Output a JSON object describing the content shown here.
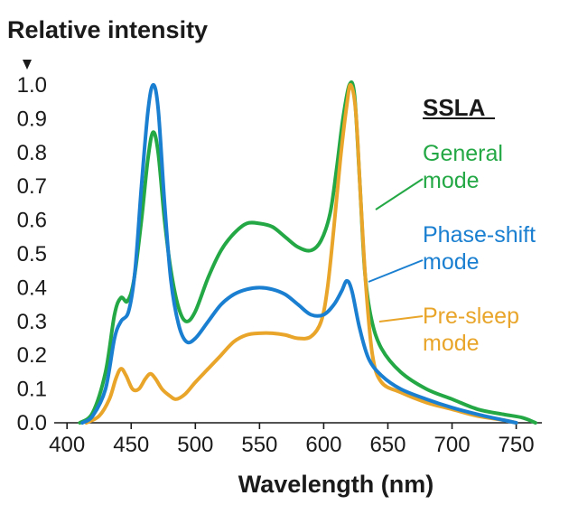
{
  "chart_data": {
    "type": "line",
    "ylabel": "Relative intensity",
    "xlabel": "Wavelength (nm)",
    "xlim": [
      390,
      770
    ],
    "ylim": [
      0,
      1.0
    ],
    "x_ticks": [
      400,
      450,
      500,
      550,
      600,
      650,
      700,
      750
    ],
    "y_ticks": [
      0.0,
      0.1,
      0.2,
      0.3,
      0.4,
      0.5,
      0.6,
      0.7,
      0.8,
      0.9,
      1.0
    ],
    "x_tick_labels": [
      "400",
      "450",
      "500",
      "550",
      "600",
      "650",
      "700",
      "750"
    ],
    "y_tick_labels": [
      "0.0",
      "0.1",
      "0.2",
      "0.3",
      "0.4",
      "0.5",
      "0.6",
      "0.7",
      "0.8",
      "0.9",
      "1.0"
    ],
    "legend_title": "SSLA",
    "grid": false,
    "series": [
      {
        "name": "General mode",
        "name_lines": [
          "General",
          "mode"
        ],
        "color": "#23a845",
        "points": [
          [
            410,
            0
          ],
          [
            420,
            0.03
          ],
          [
            430,
            0.15
          ],
          [
            437,
            0.32
          ],
          [
            442,
            0.37
          ],
          [
            447,
            0.36
          ],
          [
            452,
            0.42
          ],
          [
            458,
            0.6
          ],
          [
            463,
            0.78
          ],
          [
            467,
            0.86
          ],
          [
            471,
            0.8
          ],
          [
            476,
            0.6
          ],
          [
            481,
            0.45
          ],
          [
            487,
            0.34
          ],
          [
            493,
            0.3
          ],
          [
            500,
            0.33
          ],
          [
            510,
            0.43
          ],
          [
            520,
            0.51
          ],
          [
            530,
            0.56
          ],
          [
            540,
            0.59
          ],
          [
            550,
            0.59
          ],
          [
            560,
            0.58
          ],
          [
            570,
            0.55
          ],
          [
            580,
            0.52
          ],
          [
            590,
            0.51
          ],
          [
            598,
            0.54
          ],
          [
            605,
            0.62
          ],
          [
            610,
            0.75
          ],
          [
            615,
            0.9
          ],
          [
            620,
            1.0
          ],
          [
            624,
            0.97
          ],
          [
            628,
            0.72
          ],
          [
            632,
            0.45
          ],
          [
            637,
            0.31
          ],
          [
            645,
            0.22
          ],
          [
            660,
            0.15
          ],
          [
            680,
            0.1
          ],
          [
            700,
            0.07
          ],
          [
            720,
            0.04
          ],
          [
            740,
            0.025
          ],
          [
            755,
            0.015
          ],
          [
            765,
            0
          ]
        ]
      },
      {
        "name": "Phase-shift mode",
        "name_lines": [
          "Phase-shift",
          "mode"
        ],
        "color": "#1a7fd0",
        "points": [
          [
            412,
            0
          ],
          [
            420,
            0.02
          ],
          [
            430,
            0.1
          ],
          [
            437,
            0.25
          ],
          [
            442,
            0.3
          ],
          [
            448,
            0.33
          ],
          [
            453,
            0.45
          ],
          [
            458,
            0.7
          ],
          [
            463,
            0.92
          ],
          [
            467,
            1.0
          ],
          [
            471,
            0.93
          ],
          [
            476,
            0.65
          ],
          [
            481,
            0.42
          ],
          [
            487,
            0.29
          ],
          [
            493,
            0.24
          ],
          [
            500,
            0.25
          ],
          [
            510,
            0.3
          ],
          [
            520,
            0.35
          ],
          [
            530,
            0.38
          ],
          [
            540,
            0.395
          ],
          [
            550,
            0.4
          ],
          [
            560,
            0.395
          ],
          [
            570,
            0.38
          ],
          [
            580,
            0.35
          ],
          [
            590,
            0.32
          ],
          [
            600,
            0.32
          ],
          [
            608,
            0.35
          ],
          [
            614,
            0.39
          ],
          [
            618,
            0.42
          ],
          [
            622,
            0.39
          ],
          [
            628,
            0.28
          ],
          [
            635,
            0.19
          ],
          [
            645,
            0.14
          ],
          [
            660,
            0.1
          ],
          [
            680,
            0.07
          ],
          [
            700,
            0.045
          ],
          [
            720,
            0.025
          ],
          [
            740,
            0.008
          ],
          [
            750,
            0
          ]
        ]
      },
      {
        "name": "Pre-sleep mode",
        "name_lines": [
          "Pre-sleep",
          "mode"
        ],
        "color": "#e8a52a",
        "points": [
          [
            415,
            0
          ],
          [
            425,
            0.02
          ],
          [
            433,
            0.07
          ],
          [
            438,
            0.13
          ],
          [
            442,
            0.16
          ],
          [
            446,
            0.14
          ],
          [
            451,
            0.1
          ],
          [
            456,
            0.1
          ],
          [
            461,
            0.13
          ],
          [
            465,
            0.145
          ],
          [
            469,
            0.13
          ],
          [
            474,
            0.1
          ],
          [
            480,
            0.08
          ],
          [
            485,
            0.07
          ],
          [
            492,
            0.085
          ],
          [
            500,
            0.12
          ],
          [
            510,
            0.16
          ],
          [
            520,
            0.2
          ],
          [
            530,
            0.24
          ],
          [
            540,
            0.26
          ],
          [
            550,
            0.265
          ],
          [
            560,
            0.265
          ],
          [
            570,
            0.26
          ],
          [
            580,
            0.25
          ],
          [
            590,
            0.255
          ],
          [
            598,
            0.3
          ],
          [
            603,
            0.4
          ],
          [
            608,
            0.58
          ],
          [
            613,
            0.78
          ],
          [
            618,
            0.94
          ],
          [
            621,
            1.0
          ],
          [
            625,
            0.92
          ],
          [
            629,
            0.65
          ],
          [
            633,
            0.4
          ],
          [
            638,
            0.2
          ],
          [
            645,
            0.12
          ],
          [
            660,
            0.09
          ],
          [
            680,
            0.06
          ],
          [
            700,
            0.04
          ],
          [
            720,
            0.02
          ],
          [
            740,
            0.008
          ],
          [
            750,
            0
          ]
        ]
      }
    ]
  }
}
